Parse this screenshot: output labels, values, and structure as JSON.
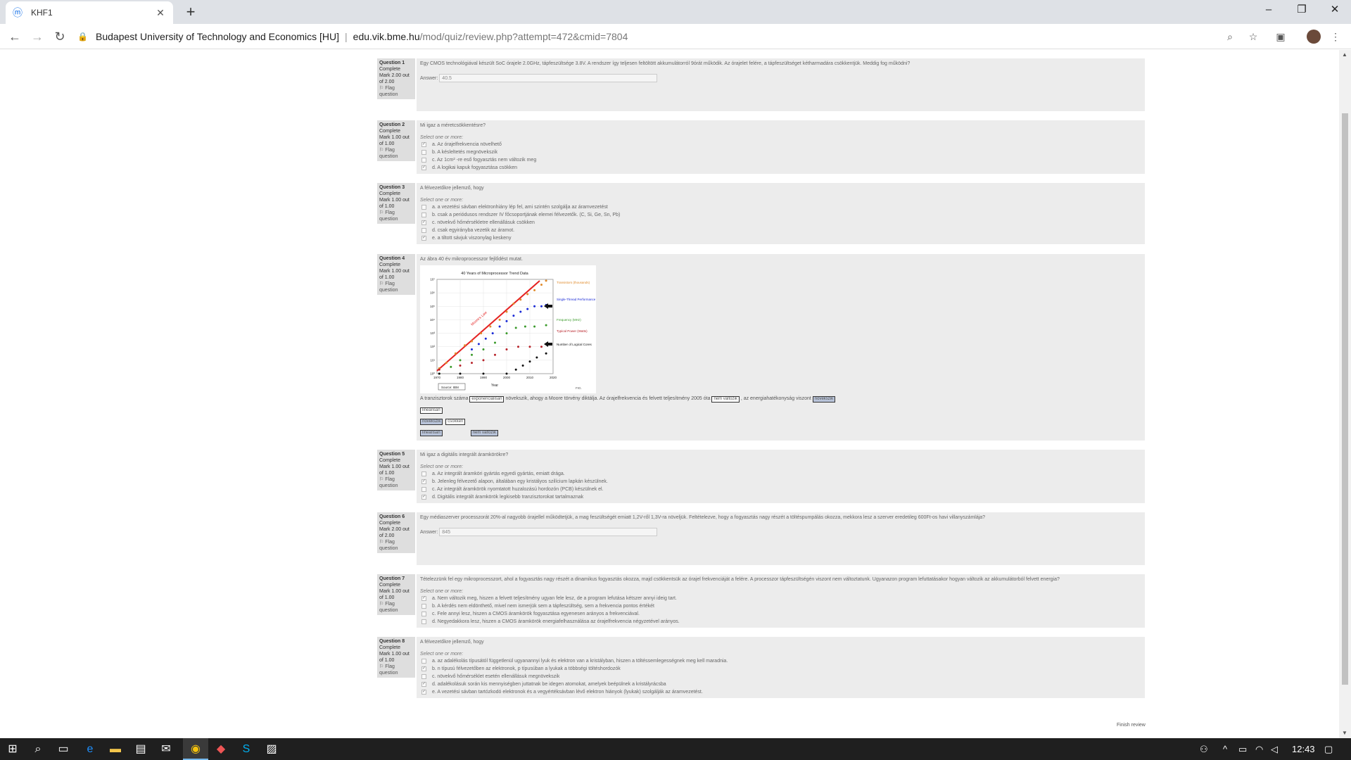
{
  "browser": {
    "tab_title": "KHF1",
    "site_name": "Budapest University of Technology and Economics [HU]",
    "url_host": "edu.vik.bme.hu",
    "url_path": "/mod/quiz/review.php?attempt=472&cmid=7804"
  },
  "questions": [
    {
      "number": "Question 1",
      "state": "Complete",
      "mark": "Mark 2.00 out of 2.00",
      "flag": "Flag question",
      "text": "Egy CMOS technológiával készült SoC órajele 2.0GHz, tápfeszültsége 3.8V. A rendszer így teljesen feltöltött akkumulátorról 9órát működik. Az órajelet felére, a tápfeszültséget kétharmadára csökkentjük. Meddig fog működni?",
      "answer_label": "Answer:",
      "answer": "40.5"
    },
    {
      "number": "Question 2",
      "state": "Complete",
      "mark": "Mark 1.00 out of 1.00",
      "flag": "Flag question",
      "text": "Mi igaz a méretcsökkentésre?",
      "prompt": "Select one or more:",
      "options": [
        {
          "label": "a. Az órajelfrekvencia növelhető",
          "checked": true
        },
        {
          "label": "b. A késleltetés megnövekszik",
          "checked": false
        },
        {
          "label": "c. Az 1cm² -re eső fogyasztás nem változik meg",
          "checked": false
        },
        {
          "label": "d. A logikai kapuk fogyasztása csökken",
          "checked": true
        }
      ]
    },
    {
      "number": "Question 3",
      "state": "Complete",
      "mark": "Mark 1.00 out of 1.00",
      "flag": "Flag question",
      "text": "A félvezetőkre jellemző, hogy",
      "prompt": "Select one or more:",
      "options": [
        {
          "label": "a. a vezetési sávban elektronhiány lép fel, ami szintén szolgálja az áramvezetést",
          "checked": false
        },
        {
          "label": "b. csak a periódusos rendszer IV főcsoportjának elemei félvezetők. (C, Si, Ge, Sn, Pb)",
          "checked": false
        },
        {
          "label": "c. növekvő hőmérsékletre ellenállásuk csökken",
          "checked": true
        },
        {
          "label": "d. csak egyirányba vezetik az áramot.",
          "checked": false
        },
        {
          "label": "e. a tiltott sávjuk viszonylag keskeny",
          "checked": true
        }
      ]
    },
    {
      "number": "Question 4",
      "state": "Complete",
      "mark": "Mark 1.00 out of 1.00",
      "flag": "Flag question",
      "text": "Az ábra 40 év mikroprocesszor fejlődést mutat.",
      "sentence_a": "A tranzisztorok száma",
      "drop_1": "exponenciálisan",
      "sentence_b": "növekszik, ahogy a Moore törvény diktálja. Az órajelfrekvencia és felvett teljesítmény 2005 óta",
      "drop_2": "nem változik",
      "sentence_c": ", az energiahatékonyság viszont",
      "drop_3": "növekszik",
      "choices": [
        "lineárisan",
        "növekszik",
        "csökken",
        "lineárisan",
        "nem változik"
      ],
      "figure": {
        "title": "40 Years of Microprocessor Trend Data",
        "xlabel": "Year",
        "x_ticks": [
          "1970",
          "1980",
          "1990",
          "2000",
          "2010",
          "2020"
        ],
        "y_ticks": [
          "10⁰",
          "10¹",
          "10²",
          "10³",
          "10⁴",
          "10⁵",
          "10⁶",
          "10⁷"
        ],
        "legend": [
          {
            "label": "Transistors (thousands)",
            "color": "#e08a2a"
          },
          {
            "label": "Single-Thread Performance (SpecINT x 10³)",
            "color": "#1a2ad6"
          },
          {
            "label": "Frequency (MHz)",
            "color": "#3a9a2a"
          },
          {
            "label": "Typical Power (Watts)",
            "color": "#b8232a"
          },
          {
            "label": "Number of Logical Cores",
            "color": "#111111"
          }
        ],
        "annotation": "Moore's Law",
        "source": "Source: IBM",
        "corner_label": "FIG."
      }
    },
    {
      "number": "Question 5",
      "state": "Complete",
      "mark": "Mark 1.00 out of 1.00",
      "flag": "Flag question",
      "text": "Mi igaz a digitális integrált áramkörökre?",
      "prompt": "Select one or more:",
      "options": [
        {
          "label": "a. Az integrált áramköri gyártás egyedi gyártás, emiatt drága.",
          "checked": false
        },
        {
          "label": "b. Jelenleg félvezető alapon, általában egy kristályos szilícium lapkán készülnek.",
          "checked": true
        },
        {
          "label": "c. Az integrált áramkörök nyomtatott huzalozású hordozón (PCB) készülnek el.",
          "checked": false
        },
        {
          "label": "d. Digitális integrált áramkörök legkisebb tranzisztorokat tartalmaznak",
          "checked": true
        }
      ]
    },
    {
      "number": "Question 6",
      "state": "Complete",
      "mark": "Mark 2.00 out of 2.00",
      "flag": "Flag question",
      "text": "Egy médiaszerver processzorát 20%-al nagyobb órajellel működtetjük, a mag feszültségét emiatt 1,2V-ről 1,3V-ra növeljük. Feltételezve, hogy a fogyasztás nagy részét a töltéspumpálás okozza, mekkora lesz a szerver eredetileg 600Ft-os havi villanyszámlája?",
      "answer_label": "Answer:",
      "answer": "845"
    },
    {
      "number": "Question 7",
      "state": "Complete",
      "mark": "Mark 1.00 out of 1.00",
      "flag": "Flag question",
      "text": "Tételezzünk fel egy mikroprocesszort, ahol a fogyasztás nagy részét a dinamikus fogyasztás okozza, majd csökkentsük az órajel frekvenciáját a felére. A processzor tápfeszültségén viszont nem változtatunk. Ugyanazon program lefuttatásakor hogyan változik az akkumulátorból felvett energia?",
      "prompt": "Select one or more:",
      "options": [
        {
          "label": "a. Nem változik meg, hiszen a felvett teljesítmény ugyan fele lesz, de a program lefutása kétszer annyi ideig tart.",
          "checked": true
        },
        {
          "label": "b. A kérdés nem eldönthető, mivel nem ismerjük sem a tápfeszültség, sem a frekvencia pontos értékét",
          "checked": false
        },
        {
          "label": "c. Fele annyi lesz, hiszen a CMOS áramkörök fogyasztása egyenesen arányos a frekvenciával.",
          "checked": false
        },
        {
          "label": "d. Negyedakkora lesz, hiszen a CMOS áramkörök energiafelhasználása az órajelfrekvencia négyzetével arányos.",
          "checked": false
        }
      ]
    },
    {
      "number": "Question 8",
      "state": "Complete",
      "mark": "Mark 1.00 out of 1.00",
      "flag": "Flag question",
      "text": "A félvezetőkre jellemző, hogy",
      "prompt": "Select one or more:",
      "options": [
        {
          "label": "a. az adalékolás típusától függetlenül ugyanannyi lyuk és elektron van a kristályban, hiszen a töltéssemlegességnek meg kell maradnia.",
          "checked": false
        },
        {
          "label": "b. n típusú félvezetőben az elektronok, p típusúban a lyukak a többségi töltéshordozók",
          "checked": true
        },
        {
          "label": "c. növekvő hőmérséklet esetén ellenállásuk megnövekszik",
          "checked": false
        },
        {
          "label": "d. adalékolásuk során kis mennyiségben juttatnak be idegen atomokat, amelyek beépülnek a kristályrácsba",
          "checked": true
        },
        {
          "label": "e. A vezetési sávban tartózkodó elektronok és a vegyértéksávban lévő elektron hiányok (lyukak) szolgálják az áramvezetést.",
          "checked": true
        }
      ]
    }
  ],
  "finish_review": "Finish review",
  "taskbar": {
    "clock": "12:43"
  },
  "chart_data": {
    "type": "scatter",
    "title": "40 Years of Microprocessor Trend Data",
    "xlabel": "Year",
    "ylabel": "",
    "xlim": [
      1970,
      2020
    ],
    "ylim_log10": [
      0,
      7
    ],
    "series": [
      {
        "name": "Transistors (thousands)",
        "x": [
          1971,
          1974,
          1978,
          1982,
          1985,
          1989,
          1993,
          1997,
          2000,
          2003,
          2006,
          2009,
          2012,
          2015,
          2017
        ],
        "y_log10": [
          0.4,
          0.8,
          1.5,
          2.1,
          2.4,
          3.0,
          3.5,
          4.0,
          4.6,
          5.2,
          5.5,
          5.9,
          6.2,
          6.6,
          6.9
        ]
      },
      {
        "name": "Single-Thread Performance (SpecINT x 10³)",
        "x": [
          1985,
          1988,
          1991,
          1994,
          1997,
          2000,
          2003,
          2006,
          2009,
          2012,
          2015,
          2017
        ],
        "y_log10": [
          1.8,
          2.2,
          2.6,
          3.0,
          3.5,
          3.9,
          4.3,
          4.6,
          4.8,
          5.0,
          5.0,
          5.1
        ]
      },
      {
        "name": "Frequency (MHz)",
        "x": [
          1971,
          1976,
          1980,
          1985,
          1990,
          1995,
          2000,
          2004,
          2008,
          2012,
          2017
        ],
        "y_log10": [
          0.0,
          0.5,
          1.0,
          1.4,
          1.8,
          2.3,
          3.0,
          3.4,
          3.5,
          3.5,
          3.6
        ]
      },
      {
        "name": "Typical Power (Watts)",
        "x": [
          1971,
          1980,
          1985,
          1990,
          1995,
          2000,
          2005,
          2010,
          2015
        ],
        "y_log10": [
          0.3,
          0.6,
          0.8,
          1.0,
          1.4,
          1.8,
          2.0,
          2.0,
          2.0
        ]
      },
      {
        "name": "Number of Logical Cores",
        "x": [
          1971,
          1980,
          1990,
          2000,
          2004,
          2007,
          2010,
          2013,
          2017
        ],
        "y_log10": [
          0.0,
          0.0,
          0.0,
          0.0,
          0.3,
          0.6,
          0.9,
          1.2,
          1.5
        ]
      }
    ]
  }
}
